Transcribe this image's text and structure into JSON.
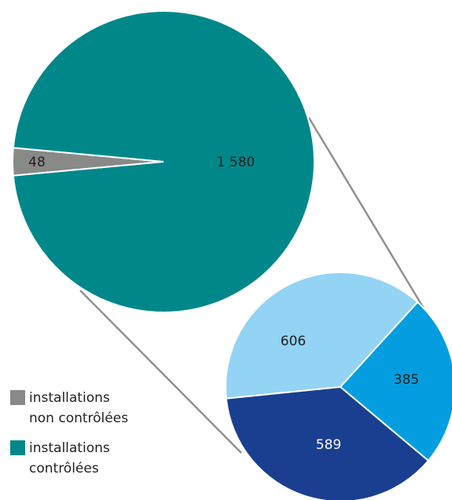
{
  "chart_data": [
    {
      "type": "pie",
      "slices": [
        {
          "name": "installations non contrôlées",
          "value": 48,
          "label": "48",
          "color": "#888a88"
        },
        {
          "name": "installations contrôlées",
          "value": 1580,
          "label": "1 580",
          "color": "#00878a"
        }
      ]
    },
    {
      "type": "pie",
      "slices": [
        {
          "value": 606,
          "label": "606",
          "color": "#93d3f3"
        },
        {
          "value": 385,
          "label": "385",
          "color": "#049ee0"
        },
        {
          "value": 589,
          "label": "589",
          "color": "#1b3f90"
        }
      ]
    }
  ],
  "legend": [
    {
      "label": "installations\nnon contrôlées",
      "color": "#888a88"
    },
    {
      "label": "installations\ncontrôlées",
      "color": "#00878a"
    }
  ],
  "connector_color": "#8f918f"
}
